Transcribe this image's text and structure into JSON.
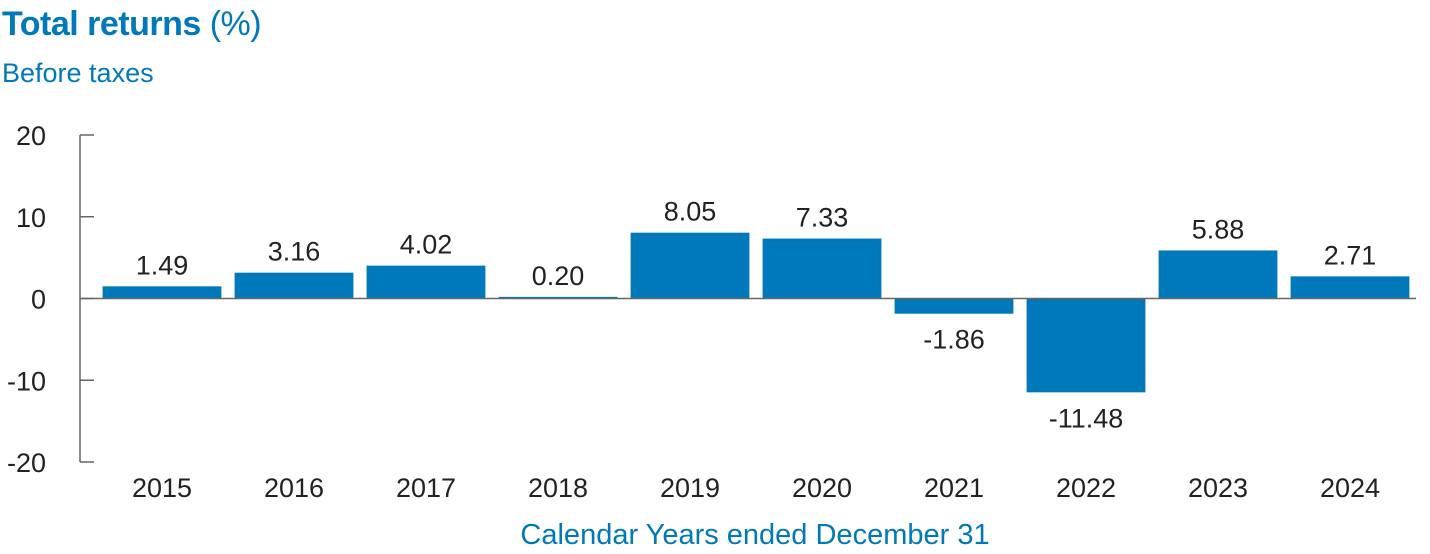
{
  "chart_data": {
    "type": "bar",
    "title": "Total returns",
    "title_unit": "(%)",
    "subtitle": "Before taxes",
    "xlabel": "Calendar Years ended December 31",
    "ylabel": "",
    "categories": [
      "2015",
      "2016",
      "2017",
      "2018",
      "2019",
      "2020",
      "2021",
      "2022",
      "2023",
      "2024"
    ],
    "values": [
      1.49,
      3.16,
      4.02,
      0.2,
      8.05,
      7.33,
      -1.86,
      -11.48,
      5.88,
      2.71
    ],
    "value_labels": [
      "1.49",
      "3.16",
      "4.02",
      "0.20",
      "8.05",
      "7.33",
      "-1.86",
      "-11.48",
      "5.88",
      "2.71"
    ],
    "ylim": [
      -20,
      20
    ],
    "yticks": [
      20,
      10,
      0,
      -10,
      -20
    ],
    "grid": false,
    "legend": "none",
    "bar_color": "#0079ba",
    "accent_color": "#0079ba"
  }
}
